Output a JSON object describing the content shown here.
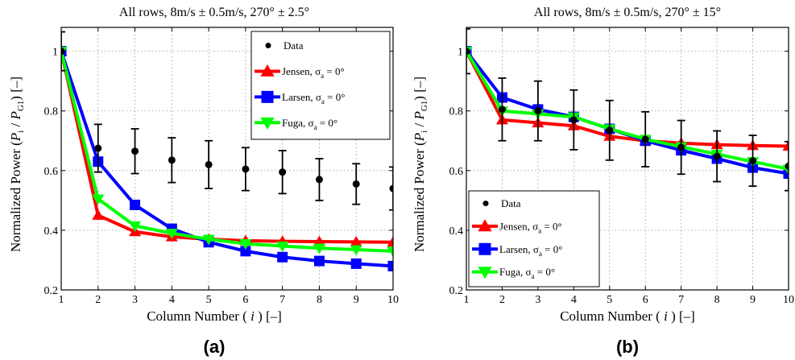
{
  "chart_data": [
    {
      "type": "line",
      "panel_label": "(a)",
      "title": "All rows, 8m/s ± 0.5m/s, 270° ± 2.5°",
      "xlabel": "Column Number ( i ) [–]",
      "ylabel": "Normalized Power (P_i / P_G1) [–]",
      "xlim": [
        1,
        10
      ],
      "ylim": [
        0.2,
        1.08
      ],
      "xticks": [
        1,
        2,
        3,
        4,
        5,
        6,
        7,
        8,
        9,
        10
      ],
      "yticks": [
        0.2,
        0.4,
        0.6,
        0.8,
        1
      ],
      "grid": true,
      "legend_position": "top-right",
      "data_series": {
        "name": "Data",
        "x": [
          1,
          2,
          3,
          4,
          5,
          6,
          7,
          8,
          9,
          10
        ],
        "y": [
          1.0,
          0.675,
          0.665,
          0.635,
          0.62,
          0.605,
          0.595,
          0.57,
          0.555,
          0.54
        ],
        "err": [
          0.065,
          0.08,
          0.075,
          0.075,
          0.08,
          0.072,
          0.072,
          0.07,
          0.068,
          0.072
        ]
      },
      "series": [
        {
          "name": "Jensen, σa = 0°",
          "marker": "triangle-up",
          "color": "#ff0000",
          "x": [
            1,
            2,
            3,
            4,
            5,
            6,
            7,
            8,
            9,
            10
          ],
          "y": [
            1.0,
            0.45,
            0.395,
            0.378,
            0.37,
            0.365,
            0.363,
            0.362,
            0.361,
            0.36
          ]
        },
        {
          "name": "Larsen, σa = 0°",
          "marker": "square",
          "color": "#0000ff",
          "x": [
            1,
            2,
            3,
            4,
            5,
            6,
            7,
            8,
            9,
            10
          ],
          "y": [
            1.0,
            0.63,
            0.485,
            0.405,
            0.36,
            0.33,
            0.31,
            0.297,
            0.288,
            0.28
          ]
        },
        {
          "name": "Fuga, σa = 0°",
          "marker": "triangle-down",
          "color": "#00ff00",
          "x": [
            1,
            2,
            3,
            4,
            5,
            6,
            7,
            8,
            9,
            10
          ],
          "y": [
            1.0,
            0.505,
            0.415,
            0.39,
            0.37,
            0.355,
            0.347,
            0.34,
            0.335,
            0.33
          ]
        }
      ]
    },
    {
      "type": "line",
      "panel_label": "(b)",
      "title": "All rows, 8m/s ± 0.5m/s, 270° ± 15°",
      "xlabel": "Column Number ( i ) [–]",
      "ylabel": "Normalized Power (P_i / P_G1) [–]",
      "xlim": [
        1,
        10
      ],
      "ylim": [
        0.2,
        1.08
      ],
      "xticks": [
        1,
        2,
        3,
        4,
        5,
        6,
        7,
        8,
        9,
        10
      ],
      "yticks": [
        0.2,
        0.4,
        0.6,
        0.8,
        1
      ],
      "grid": true,
      "legend_position": "bottom-left",
      "data_series": {
        "name": "Data",
        "x": [
          1,
          2,
          3,
          4,
          5,
          6,
          7,
          8,
          9,
          10
        ],
        "y": [
          1.0,
          0.805,
          0.8,
          0.77,
          0.735,
          0.705,
          0.678,
          0.648,
          0.633,
          0.615
        ],
        "err": [
          0.075,
          0.105,
          0.1,
          0.1,
          0.1,
          0.092,
          0.09,
          0.085,
          0.085,
          0.082
        ]
      },
      "series": [
        {
          "name": "Jensen, σa = 0°",
          "marker": "triangle-up",
          "color": "#ff0000",
          "x": [
            1,
            2,
            3,
            4,
            5,
            6,
            7,
            8,
            9,
            10
          ],
          "y": [
            1.0,
            0.77,
            0.76,
            0.75,
            0.715,
            0.7,
            0.692,
            0.687,
            0.684,
            0.682
          ]
        },
        {
          "name": "Larsen, σa = 0°",
          "marker": "square",
          "color": "#0000ff",
          "x": [
            1,
            2,
            3,
            4,
            5,
            6,
            7,
            8,
            9,
            10
          ],
          "y": [
            1.0,
            0.845,
            0.805,
            0.78,
            0.74,
            0.7,
            0.668,
            0.64,
            0.61,
            0.59
          ]
        },
        {
          "name": "Fuga, σa = 0°",
          "marker": "triangle-down",
          "color": "#00ff00",
          "x": [
            1,
            2,
            3,
            4,
            5,
            6,
            7,
            8,
            9,
            10
          ],
          "y": [
            1.0,
            0.8,
            0.79,
            0.78,
            0.74,
            0.705,
            0.68,
            0.655,
            0.63,
            0.605
          ]
        }
      ]
    }
  ]
}
